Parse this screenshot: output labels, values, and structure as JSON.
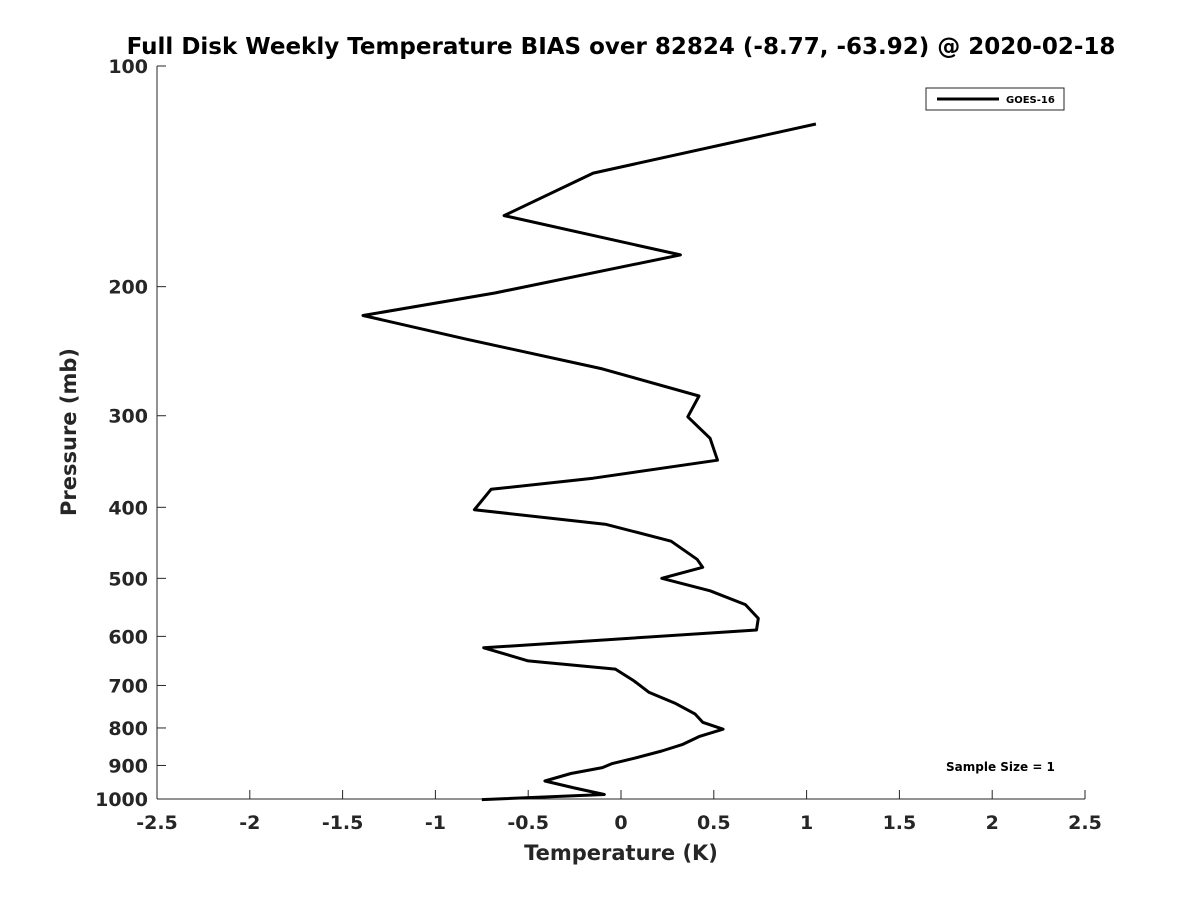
{
  "chart_data": {
    "type": "line",
    "title": "Full Disk Weekly Temperature BIAS over 82824 (-8.77, -63.92) @ 2020-02-18",
    "xlabel": "Temperature (K)",
    "ylabel": "Pressure (mb)",
    "xlim": [
      -2.5,
      2.5
    ],
    "ylim": [
      100,
      1000
    ],
    "y_scale": "log",
    "y_reversed": true,
    "x_ticks": [
      -2.5,
      -2,
      -1.5,
      -1,
      -0.5,
      0,
      0.5,
      1,
      1.5,
      2,
      2.5
    ],
    "x_tick_labels": [
      "-2.5",
      "-2",
      "-1.5",
      "-1",
      "-0.5",
      "0",
      "0.5",
      "1",
      "1.5",
      "2",
      "2.5"
    ],
    "y_ticks": [
      100,
      200,
      300,
      400,
      500,
      600,
      700,
      800,
      900,
      1000
    ],
    "y_tick_labels": [
      "100",
      "200",
      "300",
      "400",
      "500",
      "600",
      "700",
      "800",
      "900",
      "1000"
    ],
    "grid": false,
    "legend_position": "top-right",
    "series": [
      {
        "name": "GOES-16",
        "color": "#000000",
        "points": [
          {
            "x": 1.05,
            "p": 120
          },
          {
            "x": -0.15,
            "p": 140
          },
          {
            "x": -0.63,
            "p": 160
          },
          {
            "x": 0.32,
            "p": 181
          },
          {
            "x": -0.68,
            "p": 204
          },
          {
            "x": -1.39,
            "p": 219
          },
          {
            "x": -0.83,
            "p": 236
          },
          {
            "x": -0.1,
            "p": 259
          },
          {
            "x": 0.42,
            "p": 282
          },
          {
            "x": 0.36,
            "p": 301
          },
          {
            "x": 0.48,
            "p": 322
          },
          {
            "x": 0.52,
            "p": 345
          },
          {
            "x": -0.15,
            "p": 365
          },
          {
            "x": -0.7,
            "p": 378
          },
          {
            "x": -0.79,
            "p": 403
          },
          {
            "x": -0.08,
            "p": 422
          },
          {
            "x": 0.27,
            "p": 445
          },
          {
            "x": 0.41,
            "p": 471
          },
          {
            "x": 0.44,
            "p": 483
          },
          {
            "x": 0.22,
            "p": 500
          },
          {
            "x": 0.48,
            "p": 520
          },
          {
            "x": 0.67,
            "p": 543
          },
          {
            "x": 0.74,
            "p": 567
          },
          {
            "x": 0.73,
            "p": 588
          },
          {
            "x": -0.74,
            "p": 622
          },
          {
            "x": -0.5,
            "p": 648
          },
          {
            "x": -0.03,
            "p": 665
          },
          {
            "x": 0.07,
            "p": 690
          },
          {
            "x": 0.15,
            "p": 715
          },
          {
            "x": 0.29,
            "p": 740
          },
          {
            "x": 0.4,
            "p": 766
          },
          {
            "x": 0.44,
            "p": 786
          },
          {
            "x": 0.55,
            "p": 803
          },
          {
            "x": 0.42,
            "p": 822
          },
          {
            "x": 0.33,
            "p": 843
          },
          {
            "x": 0.22,
            "p": 860
          },
          {
            "x": 0.07,
            "p": 880
          },
          {
            "x": -0.05,
            "p": 895
          },
          {
            "x": -0.1,
            "p": 906
          },
          {
            "x": -0.27,
            "p": 923
          },
          {
            "x": -0.41,
            "p": 945
          },
          {
            "x": -0.25,
            "p": 966
          },
          {
            "x": -0.09,
            "p": 986
          },
          {
            "x": -0.75,
            "p": 1002
          }
        ]
      }
    ],
    "annotation": "Sample Size = 1"
  }
}
